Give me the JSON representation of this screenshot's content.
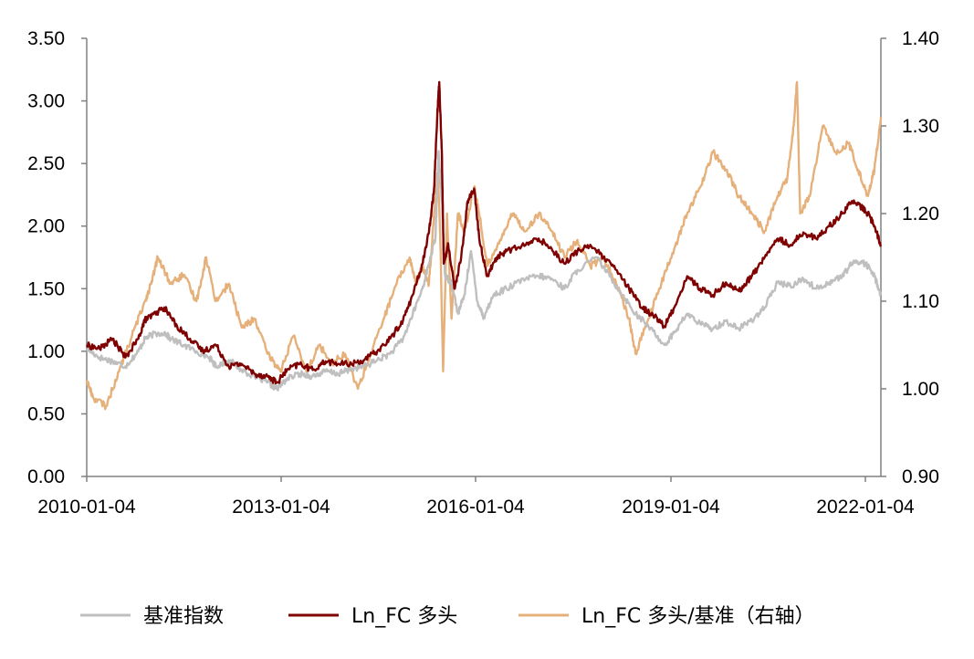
{
  "chart_data": {
    "type": "line",
    "title": "",
    "xlabel": "",
    "ylabel": "",
    "x_ticks": [
      "2010-01-04",
      "2013-01-04",
      "2016-01-04",
      "2019-01-04",
      "2022-01-04"
    ],
    "y_left": {
      "lim": [
        0,
        3.5
      ],
      "ticks": [
        "0.00",
        "0.50",
        "1.00",
        "1.50",
        "2.00",
        "2.50",
        "3.00",
        "3.50"
      ]
    },
    "y_right": {
      "lim": [
        0.9,
        1.4
      ],
      "ticks": [
        "0.90",
        "1.00",
        "1.10",
        "1.20",
        "1.30",
        "1.40"
      ]
    },
    "grid": false,
    "legend_position": "bottom",
    "x_range": [
      2010.0,
      2022.3
    ],
    "series": [
      {
        "name": "基准指数",
        "axis": "left",
        "color": "#BFBFBF",
        "points": [
          [
            2010.0,
            1.02
          ],
          [
            2010.2,
            0.95
          ],
          [
            2010.4,
            0.92
          ],
          [
            2010.6,
            0.88
          ],
          [
            2010.8,
            1.0
          ],
          [
            2010.9,
            1.1
          ],
          [
            2011.0,
            1.13
          ],
          [
            2011.2,
            1.15
          ],
          [
            2011.3,
            1.1
          ],
          [
            2011.5,
            1.05
          ],
          [
            2011.7,
            1.0
          ],
          [
            2011.9,
            0.95
          ],
          [
            2012.0,
            0.88
          ],
          [
            2012.2,
            0.93
          ],
          [
            2012.4,
            0.85
          ],
          [
            2012.6,
            0.8
          ],
          [
            2012.8,
            0.75
          ],
          [
            2012.95,
            0.7
          ],
          [
            2013.1,
            0.78
          ],
          [
            2013.3,
            0.82
          ],
          [
            2013.5,
            0.8
          ],
          [
            2013.7,
            0.84
          ],
          [
            2013.9,
            0.82
          ],
          [
            2014.1,
            0.86
          ],
          [
            2014.3,
            0.88
          ],
          [
            2014.5,
            0.93
          ],
          [
            2014.7,
            0.98
          ],
          [
            2014.9,
            1.1
          ],
          [
            2015.05,
            1.3
          ],
          [
            2015.2,
            1.5
          ],
          [
            2015.3,
            1.7
          ],
          [
            2015.4,
            1.9
          ],
          [
            2015.45,
            2.6
          ],
          [
            2015.5,
            2.2
          ],
          [
            2015.55,
            1.6
          ],
          [
            2015.65,
            1.55
          ],
          [
            2015.75,
            1.3
          ],
          [
            2015.85,
            1.45
          ],
          [
            2015.95,
            1.8
          ],
          [
            2016.05,
            1.4
          ],
          [
            2016.15,
            1.27
          ],
          [
            2016.3,
            1.45
          ],
          [
            2016.5,
            1.5
          ],
          [
            2016.8,
            1.58
          ],
          [
            2017.0,
            1.6
          ],
          [
            2017.2,
            1.58
          ],
          [
            2017.4,
            1.5
          ],
          [
            2017.6,
            1.65
          ],
          [
            2017.9,
            1.75
          ],
          [
            2018.1,
            1.6
          ],
          [
            2018.3,
            1.45
          ],
          [
            2018.5,
            1.3
          ],
          [
            2018.7,
            1.2
          ],
          [
            2018.95,
            1.05
          ],
          [
            2019.1,
            1.15
          ],
          [
            2019.3,
            1.3
          ],
          [
            2019.5,
            1.22
          ],
          [
            2019.7,
            1.18
          ],
          [
            2019.9,
            1.24
          ],
          [
            2020.1,
            1.18
          ],
          [
            2020.3,
            1.25
          ],
          [
            2020.5,
            1.35
          ],
          [
            2020.7,
            1.55
          ],
          [
            2020.9,
            1.52
          ],
          [
            2021.1,
            1.58
          ],
          [
            2021.3,
            1.5
          ],
          [
            2021.5,
            1.55
          ],
          [
            2021.7,
            1.6
          ],
          [
            2021.85,
            1.7
          ],
          [
            2022.0,
            1.72
          ],
          [
            2022.1,
            1.68
          ],
          [
            2022.2,
            1.6
          ],
          [
            2022.3,
            1.45
          ]
        ]
      },
      {
        "name": "Ln_FC 多头",
        "axis": "left",
        "color": "#7F0000",
        "points": [
          [
            2010.0,
            1.05
          ],
          [
            2010.2,
            1.02
          ],
          [
            2010.4,
            1.1
          ],
          [
            2010.6,
            0.95
          ],
          [
            2010.8,
            1.1
          ],
          [
            2010.9,
            1.25
          ],
          [
            2011.0,
            1.28
          ],
          [
            2011.2,
            1.35
          ],
          [
            2011.4,
            1.2
          ],
          [
            2011.6,
            1.1
          ],
          [
            2011.8,
            1.0
          ],
          [
            2012.0,
            1.05
          ],
          [
            2012.2,
            0.88
          ],
          [
            2012.4,
            0.9
          ],
          [
            2012.6,
            0.82
          ],
          [
            2012.8,
            0.8
          ],
          [
            2012.95,
            0.75
          ],
          [
            2013.1,
            0.85
          ],
          [
            2013.3,
            0.9
          ],
          [
            2013.5,
            0.85
          ],
          [
            2013.7,
            0.92
          ],
          [
            2013.9,
            0.9
          ],
          [
            2014.1,
            0.9
          ],
          [
            2014.3,
            0.93
          ],
          [
            2014.5,
            1.0
          ],
          [
            2014.7,
            1.1
          ],
          [
            2014.9,
            1.25
          ],
          [
            2015.05,
            1.45
          ],
          [
            2015.2,
            1.7
          ],
          [
            2015.3,
            1.95
          ],
          [
            2015.38,
            2.3
          ],
          [
            2015.43,
            2.9
          ],
          [
            2015.46,
            3.15
          ],
          [
            2015.5,
            2.6
          ],
          [
            2015.53,
            1.7
          ],
          [
            2015.6,
            1.85
          ],
          [
            2015.7,
            1.5
          ],
          [
            2015.8,
            1.75
          ],
          [
            2015.9,
            2.2
          ],
          [
            2016.0,
            2.3
          ],
          [
            2016.08,
            1.9
          ],
          [
            2016.2,
            1.6
          ],
          [
            2016.35,
            1.75
          ],
          [
            2016.5,
            1.8
          ],
          [
            2016.8,
            1.85
          ],
          [
            2017.0,
            1.9
          ],
          [
            2017.2,
            1.82
          ],
          [
            2017.4,
            1.7
          ],
          [
            2017.6,
            1.8
          ],
          [
            2017.8,
            1.85
          ],
          [
            2018.0,
            1.75
          ],
          [
            2018.2,
            1.65
          ],
          [
            2018.4,
            1.5
          ],
          [
            2018.6,
            1.35
          ],
          [
            2018.8,
            1.28
          ],
          [
            2018.95,
            1.2
          ],
          [
            2019.1,
            1.35
          ],
          [
            2019.3,
            1.6
          ],
          [
            2019.5,
            1.5
          ],
          [
            2019.7,
            1.45
          ],
          [
            2019.9,
            1.55
          ],
          [
            2020.1,
            1.48
          ],
          [
            2020.3,
            1.6
          ],
          [
            2020.5,
            1.75
          ],
          [
            2020.7,
            1.9
          ],
          [
            2020.9,
            1.85
          ],
          [
            2021.1,
            1.95
          ],
          [
            2021.3,
            1.9
          ],
          [
            2021.5,
            2.0
          ],
          [
            2021.7,
            2.1
          ],
          [
            2021.85,
            2.2
          ],
          [
            2022.0,
            2.15
          ],
          [
            2022.1,
            2.1
          ],
          [
            2022.2,
            2.0
          ],
          [
            2022.3,
            1.85
          ]
        ]
      },
      {
        "name": "Ln_FC 多头/基准（右轴）",
        "axis": "right",
        "color": "#E6B07A",
        "points": [
          [
            2010.0,
            1.01
          ],
          [
            2010.1,
            0.99
          ],
          [
            2010.3,
            0.98
          ],
          [
            2010.5,
            1.02
          ],
          [
            2010.7,
            1.06
          ],
          [
            2010.9,
            1.1
          ],
          [
            2011.0,
            1.12
          ],
          [
            2011.1,
            1.15
          ],
          [
            2011.3,
            1.12
          ],
          [
            2011.5,
            1.13
          ],
          [
            2011.7,
            1.1
          ],
          [
            2011.85,
            1.15
          ],
          [
            2012.0,
            1.1
          ],
          [
            2012.2,
            1.12
          ],
          [
            2012.4,
            1.07
          ],
          [
            2012.6,
            1.08
          ],
          [
            2012.8,
            1.04
          ],
          [
            2013.0,
            1.02
          ],
          [
            2013.2,
            1.06
          ],
          [
            2013.4,
            1.02
          ],
          [
            2013.6,
            1.05
          ],
          [
            2013.8,
            1.03
          ],
          [
            2014.0,
            1.04
          ],
          [
            2014.2,
            1.0
          ],
          [
            2014.4,
            1.04
          ],
          [
            2014.6,
            1.08
          ],
          [
            2014.8,
            1.12
          ],
          [
            2015.0,
            1.15
          ],
          [
            2015.1,
            1.12
          ],
          [
            2015.2,
            1.14
          ],
          [
            2015.3,
            1.12
          ],
          [
            2015.38,
            1.2
          ],
          [
            2015.44,
            1.25
          ],
          [
            2015.48,
            1.16
          ],
          [
            2015.52,
            1.02
          ],
          [
            2015.58,
            1.2
          ],
          [
            2015.65,
            1.08
          ],
          [
            2015.75,
            1.2
          ],
          [
            2015.85,
            1.18
          ],
          [
            2016.0,
            1.23
          ],
          [
            2016.08,
            1.2
          ],
          [
            2016.2,
            1.14
          ],
          [
            2016.4,
            1.17
          ],
          [
            2016.6,
            1.2
          ],
          [
            2016.8,
            1.18
          ],
          [
            2017.0,
            1.2
          ],
          [
            2017.2,
            1.18
          ],
          [
            2017.4,
            1.15
          ],
          [
            2017.6,
            1.17
          ],
          [
            2017.8,
            1.14
          ],
          [
            2018.0,
            1.15
          ],
          [
            2018.2,
            1.12
          ],
          [
            2018.4,
            1.08
          ],
          [
            2018.5,
            1.04
          ],
          [
            2018.7,
            1.08
          ],
          [
            2018.9,
            1.12
          ],
          [
            2019.1,
            1.16
          ],
          [
            2019.3,
            1.2
          ],
          [
            2019.5,
            1.23
          ],
          [
            2019.7,
            1.27
          ],
          [
            2019.9,
            1.25
          ],
          [
            2020.1,
            1.22
          ],
          [
            2020.3,
            1.2
          ],
          [
            2020.5,
            1.18
          ],
          [
            2020.7,
            1.22
          ],
          [
            2020.85,
            1.24
          ],
          [
            2020.95,
            1.3
          ],
          [
            2021.0,
            1.35
          ],
          [
            2021.05,
            1.2
          ],
          [
            2021.2,
            1.22
          ],
          [
            2021.4,
            1.3
          ],
          [
            2021.6,
            1.27
          ],
          [
            2021.8,
            1.28
          ],
          [
            2021.95,
            1.25
          ],
          [
            2022.1,
            1.22
          ],
          [
            2022.2,
            1.25
          ],
          [
            2022.3,
            1.31
          ]
        ]
      }
    ]
  },
  "legend": [
    {
      "label": "基准指数",
      "color": "#BFBFBF"
    },
    {
      "label": "Ln_FC 多头",
      "color": "#7F0000"
    },
    {
      "label": "Ln_FC 多头/基准（右轴）",
      "color": "#E6B07A"
    }
  ]
}
